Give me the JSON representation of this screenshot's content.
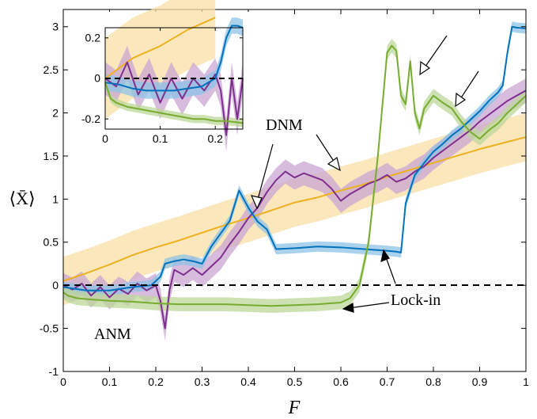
{
  "chart_data": {
    "type": "line",
    "xlabel": "F",
    "ylabel": "⟨X̄⟩",
    "xlim": [
      0,
      1
    ],
    "ylim": [
      -1,
      3.2
    ],
    "grid": false,
    "xticks": [
      "0",
      "0.1",
      "0.2",
      "0.3",
      "0.4",
      "0.5",
      "0.6",
      "0.7",
      "0.8",
      "0.9",
      "1"
    ],
    "yticks": [
      "-1",
      "-0.5",
      "0",
      "0.5",
      "1",
      "1.5",
      "2",
      "2.5",
      "3"
    ],
    "reference_line": {
      "y": 0,
      "style": "dashed"
    },
    "colors": {
      "orange": "#EDB120",
      "orange_band": "#F8DFA6",
      "purple": "#7E2F8E",
      "purple_band": "#C9A6D2",
      "blue": "#0072BD",
      "blue_band": "#8FC3E6",
      "green": "#77AC30",
      "green_band": "#BCD79A"
    },
    "annotations": [
      "DNM",
      "Lock-in",
      "ANM"
    ],
    "series": [
      {
        "color": "orange",
        "x": [
          0,
          0.05,
          0.1,
          0.15,
          0.2,
          0.25,
          0.3,
          0.35,
          0.4,
          0.45,
          0.5,
          0.55,
          0.6,
          0.65,
          0.7,
          0.75,
          0.8,
          0.85,
          0.9,
          0.95,
          1.0
        ],
        "y": [
          0.05,
          0.14,
          0.24,
          0.35,
          0.44,
          0.52,
          0.61,
          0.7,
          0.78,
          0.87,
          0.96,
          1.02,
          1.1,
          1.17,
          1.26,
          1.34,
          1.42,
          1.5,
          1.58,
          1.65,
          1.72
        ],
        "band": 0.28
      },
      {
        "color": "purple",
        "x": [
          0,
          0.02,
          0.04,
          0.06,
          0.08,
          0.1,
          0.12,
          0.14,
          0.16,
          0.18,
          0.2,
          0.21,
          0.22,
          0.23,
          0.24,
          0.26,
          0.28,
          0.3,
          0.32,
          0.34,
          0.36,
          0.38,
          0.4,
          0.42,
          0.44,
          0.46,
          0.48,
          0.5,
          0.52,
          0.54,
          0.56,
          0.58,
          0.6,
          0.62,
          0.64,
          0.66,
          0.68,
          0.7,
          0.72,
          0.74,
          0.76,
          0.78,
          0.8,
          0.82,
          0.84,
          0.86,
          0.88,
          0.9,
          0.92,
          0.94,
          0.96,
          0.98,
          1.0
        ],
        "y": [
          0.0,
          -0.05,
          0.02,
          -0.12,
          -0.02,
          -0.14,
          -0.04,
          -0.1,
          0.02,
          -0.06,
          0.0,
          -0.18,
          -0.5,
          -0.05,
          0.18,
          0.12,
          0.2,
          0.12,
          0.22,
          0.32,
          0.48,
          0.62,
          0.78,
          0.9,
          1.08,
          1.22,
          1.32,
          1.25,
          1.3,
          1.26,
          1.22,
          1.12,
          0.98,
          1.06,
          1.12,
          1.18,
          1.22,
          1.28,
          1.2,
          1.24,
          1.32,
          1.38,
          1.48,
          1.56,
          1.64,
          1.72,
          1.8,
          1.9,
          1.98,
          2.06,
          2.14,
          2.2,
          2.26
        ],
        "band": 0.14
      },
      {
        "color": "blue",
        "x": [
          0,
          0.05,
          0.1,
          0.15,
          0.19,
          0.21,
          0.22,
          0.24,
          0.26,
          0.28,
          0.3,
          0.32,
          0.34,
          0.36,
          0.38,
          0.4,
          0.42,
          0.44,
          0.46,
          0.5,
          0.55,
          0.6,
          0.65,
          0.7,
          0.72,
          0.73,
          0.74,
          0.76,
          0.78,
          0.8,
          0.82,
          0.84,
          0.86,
          0.88,
          0.9,
          0.92,
          0.94,
          0.95,
          0.96,
          0.97,
          0.98,
          1.0
        ],
        "y": [
          -0.02,
          -0.06,
          -0.06,
          -0.02,
          0.0,
          0.1,
          0.25,
          0.28,
          0.3,
          0.28,
          0.25,
          0.45,
          0.6,
          0.75,
          1.1,
          0.9,
          0.74,
          0.65,
          0.42,
          0.43,
          0.45,
          0.44,
          0.42,
          0.4,
          0.39,
          0.38,
          0.95,
          1.28,
          1.42,
          1.55,
          1.64,
          1.74,
          1.82,
          1.92,
          2.02,
          2.14,
          2.24,
          2.32,
          2.7,
          3.0,
          2.99,
          2.98
        ],
        "band": 0.06
      },
      {
        "color": "green",
        "x": [
          0,
          0.01,
          0.03,
          0.05,
          0.1,
          0.15,
          0.2,
          0.25,
          0.3,
          0.35,
          0.4,
          0.45,
          0.5,
          0.55,
          0.6,
          0.62,
          0.64,
          0.66,
          0.68,
          0.7,
          0.71,
          0.72,
          0.73,
          0.74,
          0.75,
          0.76,
          0.77,
          0.78,
          0.8,
          0.82,
          0.84,
          0.86,
          0.88,
          0.9,
          0.92,
          0.94,
          0.96,
          0.98,
          1.0
        ],
        "y": [
          -0.08,
          -0.12,
          -0.15,
          -0.16,
          -0.18,
          -0.19,
          -0.21,
          -0.22,
          -0.22,
          -0.22,
          -0.23,
          -0.24,
          -0.23,
          -0.22,
          -0.2,
          -0.15,
          0.0,
          0.5,
          1.5,
          2.7,
          2.78,
          2.72,
          2.2,
          2.1,
          2.6,
          2.0,
          1.82,
          2.05,
          2.2,
          2.12,
          2.05,
          1.9,
          1.78,
          1.7,
          1.8,
          1.88,
          2.0,
          2.1,
          2.2
        ],
        "band": 0.08
      }
    ],
    "inset": {
      "xlim": [
        0,
        0.25
      ],
      "ylim": [
        -0.25,
        0.25
      ],
      "xticks": [
        "0",
        "0.1",
        "0.2"
      ],
      "yticks": [
        "-0.2",
        "0",
        "0.2"
      ],
      "reference_line": {
        "y": 0,
        "style": "dashed"
      },
      "series": [
        {
          "color": "orange",
          "x": [
            0,
            0.05,
            0.1,
            0.15,
            0.2
          ],
          "y": [
            0.0,
            0.1,
            0.16,
            0.24,
            0.3
          ],
          "band": 0.2
        },
        {
          "color": "purple",
          "x": [
            0,
            0.02,
            0.04,
            0.06,
            0.08,
            0.1,
            0.12,
            0.14,
            0.16,
            0.18,
            0.2,
            0.21,
            0.22,
            0.23,
            0.24,
            0.25
          ],
          "y": [
            0.0,
            -0.04,
            0.08,
            -0.08,
            0.02,
            -0.12,
            0.0,
            -0.1,
            0.0,
            -0.06,
            0.02,
            -0.06,
            -0.28,
            0.0,
            -0.2,
            0.0
          ],
          "band": 0.08
        },
        {
          "color": "blue",
          "x": [
            0,
            0.025,
            0.05,
            0.075,
            0.1,
            0.125,
            0.15,
            0.175,
            0.2,
            0.21,
            0.22,
            0.23,
            0.24,
            0.25
          ],
          "y": [
            -0.02,
            -0.03,
            -0.05,
            -0.06,
            -0.06,
            -0.06,
            -0.05,
            -0.04,
            0.0,
            0.08,
            0.2,
            0.26,
            0.26,
            0.25
          ],
          "band": 0.04
        },
        {
          "color": "green",
          "x": [
            0,
            0.005,
            0.01,
            0.02,
            0.04,
            0.06,
            0.08,
            0.1,
            0.12,
            0.14,
            0.16,
            0.18,
            0.2,
            0.22,
            0.25
          ],
          "y": [
            -0.02,
            -0.06,
            -0.1,
            -0.12,
            -0.14,
            -0.15,
            -0.16,
            -0.17,
            -0.18,
            -0.19,
            -0.2,
            -0.2,
            -0.21,
            -0.21,
            -0.22
          ],
          "band": 0.02
        }
      ]
    }
  }
}
